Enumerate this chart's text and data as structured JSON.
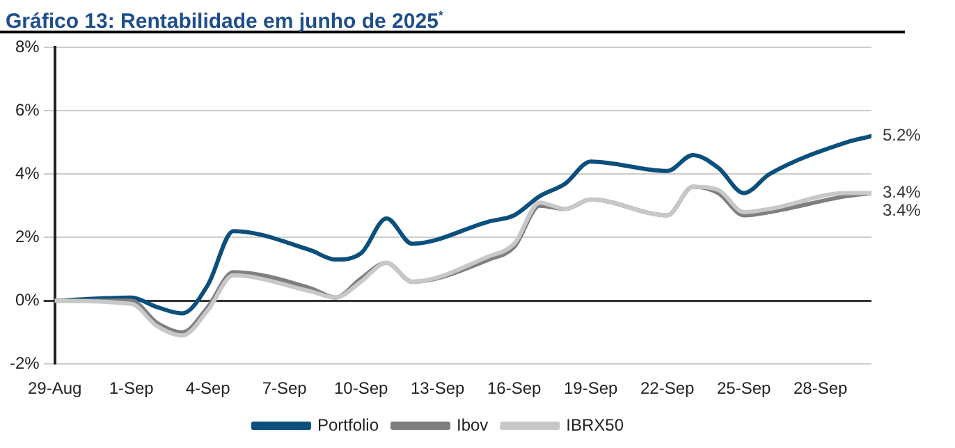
{
  "chart_data": {
    "type": "line",
    "title": "Gráfico 13: Rentabilidade em junho de 2025$^{*}$",
    "x": [
      "2025-08-29",
      "2025-09-01",
      "2025-09-02",
      "2025-09-03",
      "2025-09-04",
      "2025-09-05",
      "2025-09-08",
      "2025-09-09",
      "2025-09-10",
      "2025-09-11",
      "2025-09-12",
      "2025-09-15",
      "2025-09-16",
      "2025-09-17",
      "2025-09-18",
      "2025-09-19",
      "2025-09-22",
      "2025-09-23",
      "2025-09-24",
      "2025-09-25",
      "2025-09-26",
      "2025-09-29",
      "2025-09-30"
    ],
    "series": [
      {
        "name": "Portfolio",
        "color": "#0b4f7c",
        "values": [
          0,
          0.1,
          -0.2,
          -0.4,
          0.5,
          2.2,
          1.6,
          1.3,
          1.5,
          2.6,
          1.8,
          2.5,
          2.7,
          3.3,
          3.7,
          4.4,
          4.1,
          4.6,
          4.2,
          3.4,
          4.0,
          5.0,
          5.2
        ],
        "value_labels": [
          null,
          null,
          null,
          null,
          null,
          null,
          null,
          null,
          null,
          null,
          null,
          null,
          null,
          null,
          null,
          null,
          null,
          null,
          null,
          null,
          null,
          null,
          "5.2%"
        ]
      },
      {
        "name": "Ibov",
        "color": "#7f7f7f",
        "values": [
          0,
          0,
          -0.7,
          -1.0,
          -0.2,
          0.9,
          0.4,
          0.1,
          0.7,
          1.2,
          0.6,
          1.3,
          1.7,
          3.0,
          2.9,
          3.2,
          2.7,
          3.6,
          3.4,
          2.7,
          2.8,
          3.3,
          3.4
        ],
        "value_labels": [
          null,
          null,
          null,
          null,
          null,
          null,
          null,
          null,
          null,
          null,
          null,
          null,
          null,
          null,
          null,
          null,
          null,
          null,
          null,
          null,
          null,
          null,
          "3.4%"
        ]
      },
      {
        "name": "IBRX50",
        "color": "#c8c8c8",
        "values": [
          0,
          -0.1,
          -0.8,
          -1.1,
          -0.3,
          0.8,
          0.3,
          0.1,
          0.6,
          1.2,
          0.6,
          1.4,
          1.8,
          3.1,
          2.9,
          3.2,
          2.7,
          3.6,
          3.5,
          2.8,
          2.9,
          3.4,
          3.4
        ],
        "value_labels": [
          null,
          null,
          null,
          null,
          null,
          null,
          null,
          null,
          null,
          null,
          null,
          null,
          null,
          null,
          null,
          null,
          null,
          null,
          null,
          null,
          null,
          null,
          "3.4%"
        ]
      }
    ],
    "xlim": [
      "2025-08-29",
      "2025-09-30"
    ],
    "xticks": [
      {
        "value": "2025-08-29",
        "label": "29-Aug"
      },
      {
        "value": "2025-09-01",
        "label": "1-Sep"
      },
      {
        "value": "2025-09-04",
        "label": "4-Sep"
      },
      {
        "value": "2025-09-07",
        "label": "7-Sep"
      },
      {
        "value": "2025-09-10",
        "label": "10-Sep"
      },
      {
        "value": "2025-09-13",
        "label": "13-Sep"
      },
      {
        "value": "2025-09-16",
        "label": "16-Sep"
      },
      {
        "value": "2025-09-19",
        "label": "19-Sep"
      },
      {
        "value": "2025-09-22",
        "label": "22-Sep"
      },
      {
        "value": "2025-09-25",
        "label": "25-Sep"
      },
      {
        "value": "2025-09-28",
        "label": "28-Sep"
      }
    ],
    "ylim": [
      -2,
      8
    ],
    "yticks": [
      {
        "value": -2,
        "label": "-2%"
      },
      {
        "value": 0,
        "label": "0%"
      },
      {
        "value": 2,
        "label": "2%"
      },
      {
        "value": 4,
        "label": "4%"
      },
      {
        "value": 6,
        "label": "6%"
      },
      {
        "value": 8,
        "label": "8%"
      }
    ],
    "grid": "y",
    "legend": "bottom",
    "marker": "none",
    "line_style": "solid"
  }
}
